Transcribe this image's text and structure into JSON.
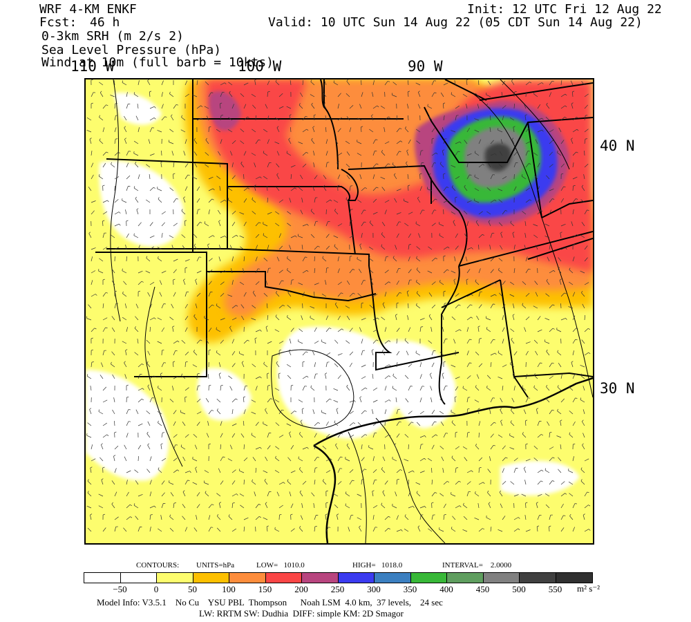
{
  "header": {
    "model": "WRF 4-KM ENKF",
    "fcst_label": "Fcst:",
    "fcst_value": "46 h",
    "field1": "0-3km SRH (m 2/s 2)",
    "field2": "Sea Level Pressure (hPa)",
    "field3": "Wind at 10m (full barb = 10kts)",
    "init": "Init: 12 UTC Fri 12 Aug 22",
    "valid": "Valid: 10 UTC Sun 14 Aug 22 (05 CDT Sun 14 Aug 22)"
  },
  "axes": {
    "lon_labels": [
      "110 W",
      "100 W",
      "90 W"
    ],
    "lat_labels": [
      "40 N",
      "30 N"
    ]
  },
  "contours": {
    "prefix": "CONTOURS:",
    "units": "UNITS=hPa",
    "low": "LOW=   1010.0",
    "high": "HIGH=   1018.0",
    "interval": "INTERVAL=    2.0000"
  },
  "colorbar": {
    "colors": [
      "#ffffff",
      "#ffffff",
      "#fdfd6e",
      "#fdc000",
      "#fd8d3c",
      "#fa4646",
      "#b8457f",
      "#3b3bf0",
      "#3b7fc0",
      "#38b838",
      "#5f9e5f",
      "#808080",
      "#404040",
      "#303030"
    ],
    "ticks": [
      "−50",
      "0",
      "50",
      "100",
      "150",
      "200",
      "250",
      "300",
      "350",
      "400",
      "450",
      "500",
      "550"
    ],
    "unit": "m² s⁻²"
  },
  "footer": {
    "line1": "Model Info: V3.5.1    No Cu    YSU PBL  Thompson      Noah LSM  4.0 km,  37 levels,    24 sec",
    "line2": "LW: RRTM SW: Dudhia  DIFF: simple KM: 2D Smagor"
  }
}
